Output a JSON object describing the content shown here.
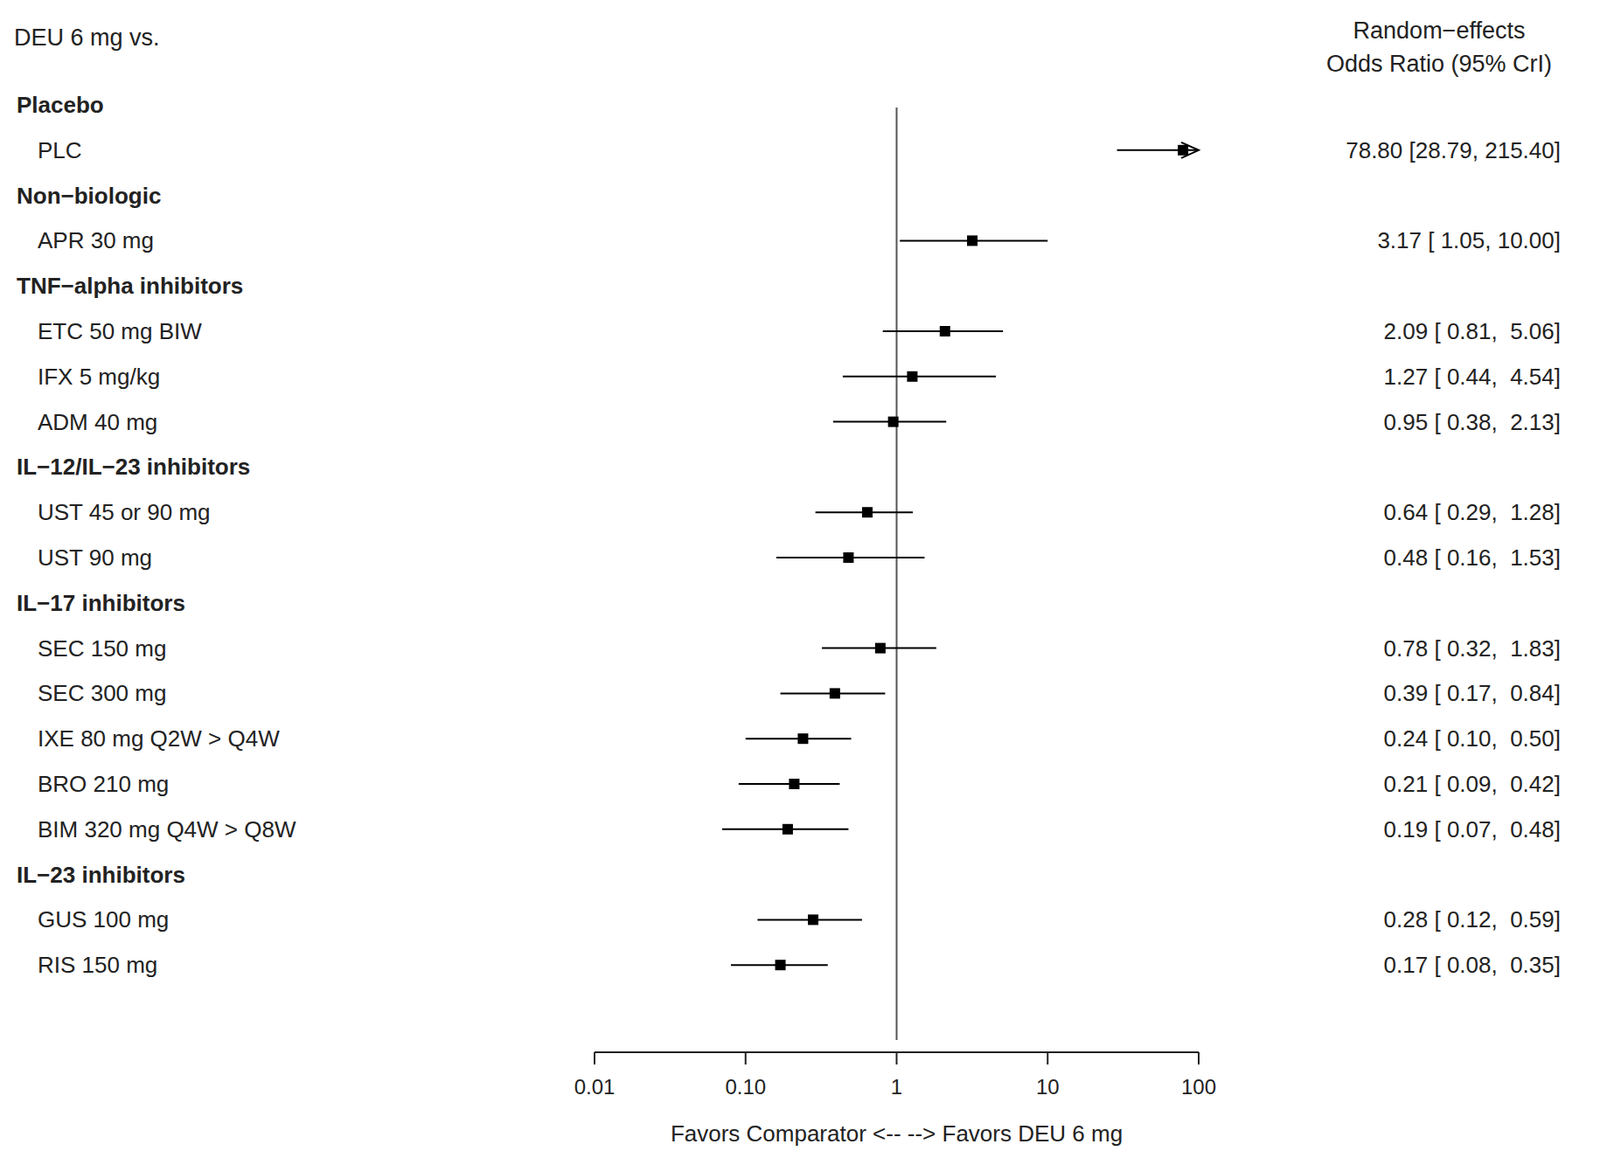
{
  "chart_data": {
    "type": "forest",
    "title": "DEU 6 mg vs.",
    "estimate_header": [
      "Random−effects",
      "Odds Ratio (95% CrI)"
    ],
    "x_label": "Favors Comparator <-- --> Favors DEU 6 mg",
    "log": "x",
    "xlim": [
      0.01,
      100
    ],
    "xticks": [
      0.01,
      {
        "value": 0.1,
        "label": "0.10"
      },
      1,
      10,
      100
    ],
    "reference": 1,
    "color": "#000000",
    "marker": "square",
    "groups": [
      {
        "name": "Placebo",
        "categories": [
          "PLC"
        ],
        "values": [
          78.8
        ],
        "lower": [
          28.79
        ],
        "upper": [
          215.4
        ],
        "value_labels": [
          "78.80 [28.79, 215.40]"
        ]
      },
      {
        "name": "Non−biologic",
        "categories": [
          "APR 30 mg"
        ],
        "values": [
          3.17
        ],
        "lower": [
          1.05
        ],
        "upper": [
          10.0
        ],
        "value_labels": [
          "3.17 [ 1.05, 10.00]"
        ]
      },
      {
        "name": "TNF−alpha inhibitors",
        "categories": [
          "ETC 50 mg BIW",
          "IFX 5 mg/kg",
          "ADM 40 mg"
        ],
        "values": [
          2.09,
          1.27,
          0.95
        ],
        "lower": [
          0.81,
          0.44,
          0.38
        ],
        "upper": [
          5.06,
          4.54,
          2.13
        ],
        "value_labels": [
          "2.09 [ 0.81,  5.06]",
          "1.27 [ 0.44,  4.54]",
          "0.95 [ 0.38,  2.13]"
        ]
      },
      {
        "name": "IL−12/IL−23 inhibitors",
        "categories": [
          "UST 45 or 90 mg",
          "UST 90 mg"
        ],
        "values": [
          0.64,
          0.48
        ],
        "lower": [
          0.29,
          0.16
        ],
        "upper": [
          1.28,
          1.53
        ],
        "value_labels": [
          "0.64 [ 0.29,  1.28]",
          "0.48 [ 0.16,  1.53]"
        ]
      },
      {
        "name": "IL−17 inhibitors",
        "categories": [
          "SEC 150 mg",
          "SEC 300 mg",
          "IXE 80 mg Q2W > Q4W",
          "BRO 210 mg",
          "BIM 320 mg Q4W > Q8W"
        ],
        "values": [
          0.78,
          0.39,
          0.24,
          0.21,
          0.19
        ],
        "lower": [
          0.32,
          0.17,
          0.1,
          0.09,
          0.07
        ],
        "upper": [
          1.83,
          0.84,
          0.5,
          0.42,
          0.48
        ],
        "value_labels": [
          "0.78 [ 0.32,  1.83]",
          "0.39 [ 0.17,  0.84]",
          "0.24 [ 0.10,  0.50]",
          "0.21 [ 0.09,  0.42]",
          "0.19 [ 0.07,  0.48]"
        ]
      },
      {
        "name": "IL−23 inhibitors",
        "categories": [
          "GUS 100 mg",
          "RIS 150 mg"
        ],
        "values": [
          0.28,
          0.17
        ],
        "lower": [
          0.12,
          0.08
        ],
        "upper": [
          0.59,
          0.35
        ],
        "value_labels": [
          "0.28 [ 0.12,  0.59]",
          "0.17 [ 0.08,  0.35]"
        ]
      }
    ]
  }
}
